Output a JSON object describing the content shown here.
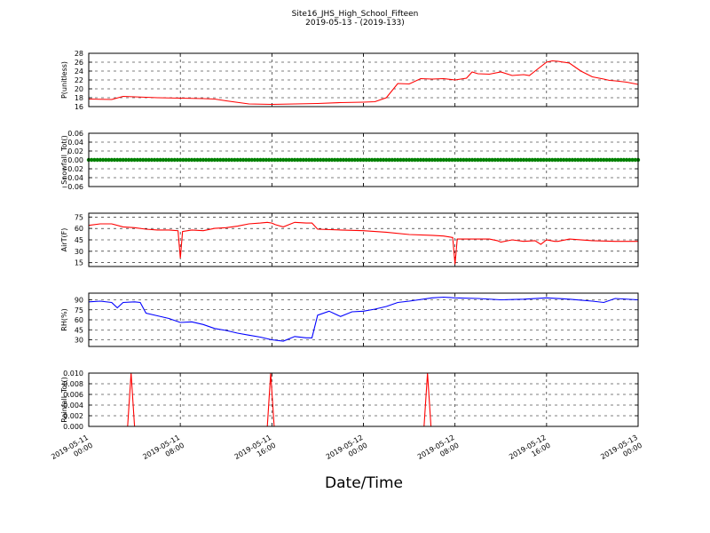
{
  "title": "Site16_JHS_High_School_Fifteen",
  "subtitle": "2019-05-13 - (2019-133)",
  "xlabel": "Date/Time",
  "x_tick_labels": [
    [
      "2019-05-11",
      "00:00"
    ],
    [
      "2019-05-11",
      "08:00"
    ],
    [
      "2019-05-11",
      "16:00"
    ],
    [
      "2019-05-12",
      "00:00"
    ],
    [
      "2019-05-12",
      "08:00"
    ],
    [
      "2019-05-12",
      "16:00"
    ],
    [
      "2019-05-13",
      "00:00"
    ]
  ],
  "colors": {
    "red": "#ff0000",
    "green": "#008000",
    "blue": "#0000ff"
  },
  "chart_data": [
    {
      "type": "line",
      "ylabel": "P(unitless)",
      "ylim": [
        16,
        28
      ],
      "yticks": [
        "16",
        "18",
        "20",
        "22",
        "24",
        "26",
        "28"
      ],
      "color": "red",
      "x_hours": [
        0,
        2,
        3,
        4,
        6,
        8,
        10,
        11,
        12,
        14,
        16,
        18,
        20,
        22,
        24,
        25,
        26,
        27,
        28,
        29,
        30,
        31,
        32,
        33,
        33.5,
        34,
        35,
        36,
        37,
        38,
        38.5,
        39,
        40,
        40.5,
        41,
        42,
        43,
        44,
        45,
        45.5,
        46,
        47,
        48
      ],
      "values": [
        17.7,
        17.6,
        18.3,
        18.2,
        18.0,
        17.9,
        17.8,
        17.7,
        17.3,
        16.6,
        16.5,
        16.6,
        16.7,
        16.9,
        17.0,
        17.1,
        18.0,
        21.2,
        21.1,
        22.3,
        22.2,
        22.3,
        22.0,
        22.4,
        23.8,
        23.4,
        23.3,
        23.8,
        23.0,
        23.2,
        23.0,
        24.0,
        26.0,
        26.3,
        26.2,
        25.8,
        24.0,
        22.7,
        22.2,
        21.9,
        21.8,
        21.5,
        21.0
      ]
    },
    {
      "type": "scatter",
      "ylabel": "Snowfall_Tot()",
      "ylim": [
        -0.06,
        0.06
      ],
      "yticks": [
        "−0.06",
        "−0.04",
        "−0.02",
        "0.00",
        "0.02",
        "0.04",
        "0.06"
      ],
      "color": "green",
      "x_hours": [
        0,
        48
      ],
      "values": [
        0.0,
        0.0
      ]
    },
    {
      "type": "line",
      "ylabel": "AirT(F)",
      "ylim": [
        10,
        80
      ],
      "yticks": [
        "15",
        "30",
        "45",
        "60",
        "75"
      ],
      "color": "red",
      "x_hours": [
        0,
        1,
        2,
        3,
        4,
        5,
        6,
        7,
        7.8,
        8.0,
        8.2,
        9,
        10,
        11,
        12,
        13,
        14,
        15,
        15.6,
        16,
        16.3,
        17,
        18,
        19,
        19.5,
        20,
        22,
        24,
        26,
        28,
        30,
        31,
        31.8,
        32.0,
        32.2,
        33,
        35,
        35.7,
        36,
        37,
        38,
        39,
        39.5,
        40,
        40.7,
        41,
        42,
        44,
        46,
        48
      ],
      "values": [
        64,
        66,
        66,
        62,
        61,
        59,
        58,
        58,
        57,
        21,
        56,
        58,
        57,
        60,
        61,
        63,
        66,
        67,
        68,
        67,
        65,
        62,
        68,
        67,
        67,
        59,
        58,
        57,
        55,
        52,
        51,
        50,
        48,
        13,
        46,
        46,
        46,
        44,
        42,
        45,
        43,
        44,
        39,
        45,
        43,
        43,
        46,
        44,
        43,
        43
      ]
    },
    {
      "type": "line",
      "ylabel": "RH(%)",
      "ylim": [
        20,
        100
      ],
      "yticks": [
        "30",
        "45",
        "60",
        "75",
        "90"
      ],
      "color": "blue",
      "x_hours": [
        0,
        1,
        2,
        2.5,
        3,
        4,
        4.5,
        5,
        6,
        7,
        8,
        9,
        10,
        11,
        12,
        13,
        14,
        15,
        16,
        17,
        18,
        19,
        19.5,
        20,
        21,
        22,
        23,
        24,
        25,
        26,
        27,
        28,
        30,
        31,
        32,
        34,
        36,
        38,
        40,
        42,
        44,
        45,
        46,
        48
      ],
      "values": [
        87,
        88,
        86,
        78,
        86,
        87,
        86,
        70,
        66,
        62,
        56,
        57,
        53,
        47,
        44,
        40,
        37,
        34,
        30,
        28,
        35,
        33,
        33,
        67,
        73,
        65,
        72,
        73,
        76,
        80,
        86,
        88,
        93,
        94,
        93,
        92,
        90,
        91,
        93,
        91,
        88,
        86,
        92,
        90
      ]
    },
    {
      "type": "line",
      "ylabel": "Rainfall_Tot()",
      "ylim": [
        0,
        0.01
      ],
      "yticks": [
        "0.000",
        "0.002",
        "0.004",
        "0.006",
        "0.008",
        "0.010"
      ],
      "color": "red",
      "x_hours": [
        0,
        3.4,
        3.7,
        4.0,
        15.6,
        15.9,
        16.2,
        29.3,
        29.6,
        29.9,
        48
      ],
      "values": [
        0,
        0,
        0.01,
        0,
        0,
        0.01,
        0,
        0,
        0.01,
        0,
        0
      ]
    }
  ]
}
